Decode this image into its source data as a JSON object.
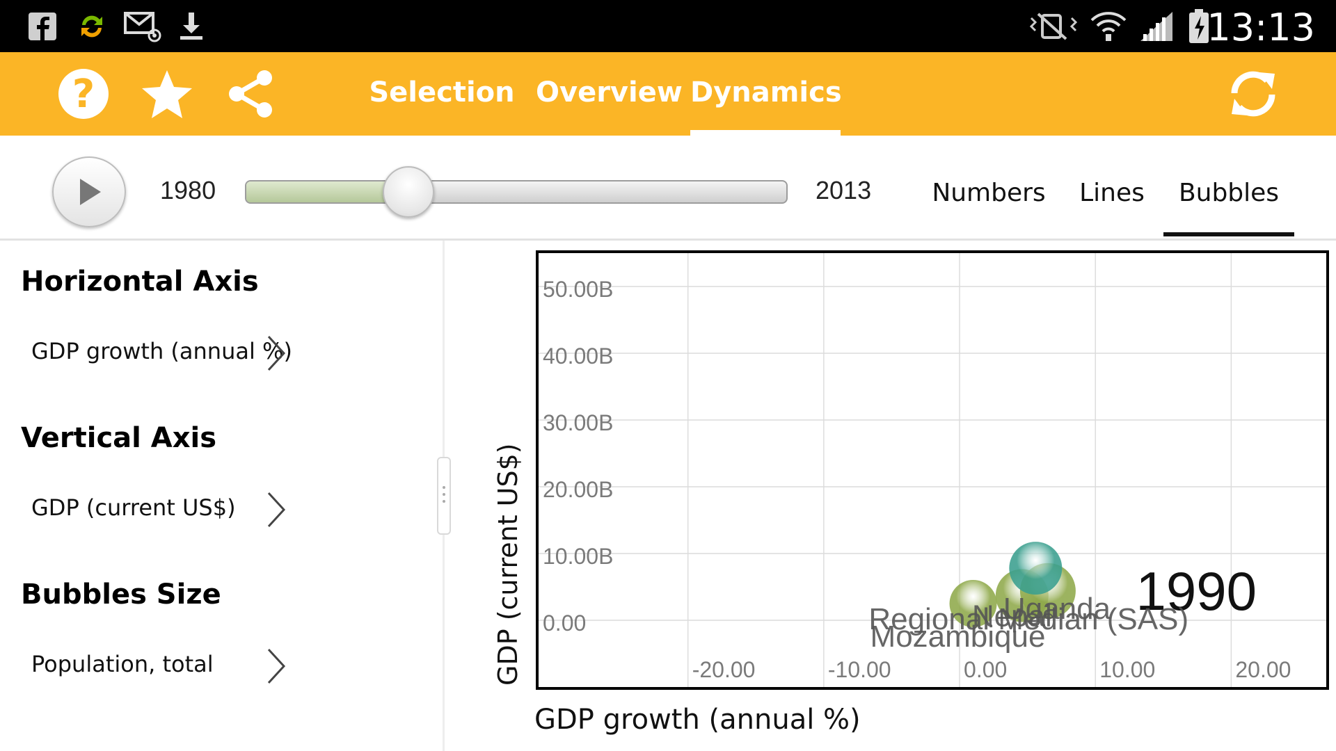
{
  "status_bar": {
    "icons": [
      "facebook-icon",
      "sync-icon",
      "email-icon",
      "download-icon",
      "mute-icon",
      "wifi-icon",
      "signal-icon",
      "battery-icon"
    ],
    "time": "13:13"
  },
  "action_bar": {
    "accent_color": "#fbb526",
    "icons": [
      "help-icon",
      "star-icon",
      "share-icon",
      "refresh-icon"
    ],
    "help_glyph": "?",
    "tabs": [
      {
        "label": "Selection",
        "active": false
      },
      {
        "label": "Overview",
        "active": false
      },
      {
        "label": "Dynamics",
        "active": true
      }
    ]
  },
  "timeline": {
    "start_year": "1980",
    "end_year": "2013",
    "progress_fraction": 0.3,
    "modes": [
      {
        "label": "Numbers",
        "active": false
      },
      {
        "label": "Lines",
        "active": false
      },
      {
        "label": "Bubbles",
        "active": true
      }
    ]
  },
  "settings": {
    "horizontal_axis_title": "Horizontal Axis",
    "horizontal_axis_value": "GDP growth (annual %)",
    "vertical_axis_title": "Vertical Axis",
    "vertical_axis_value": "GDP (current US$)",
    "bubble_size_title": "Bubbles Size",
    "bubble_size_value": "Population, total"
  },
  "chart_data": {
    "type": "scatter",
    "xlabel": "GDP growth (annual %)",
    "ylabel": "GDP (current US$)",
    "year_label": "1990",
    "xlim": [
      -31,
      27
    ],
    "ylim": [
      -10,
      55
    ],
    "x_ticks": [
      -20,
      -10,
      0,
      10,
      20
    ],
    "x_tick_labels": [
      "-20.00",
      "-10.00",
      "0.00",
      "10.00",
      "20.00"
    ],
    "y_ticks": [
      0,
      10,
      20,
      30,
      40,
      50
    ],
    "y_tick_labels": [
      "0.00",
      "10.00B",
      "20.00B",
      "30.00B",
      "40.00B",
      "50.00B"
    ],
    "grid": true,
    "points": [
      {
        "label": "Mozambique",
        "x": 1.0,
        "y": 2.5,
        "size": 34,
        "color": "#8fa94a"
      },
      {
        "label": "Nepal",
        "x": 4.6,
        "y": 3.7,
        "size": 38,
        "color": "#8fa94a"
      },
      {
        "label": "Uganda",
        "x": 6.5,
        "y": 4.4,
        "size": 40,
        "color": "#8fa94a"
      },
      {
        "label": "Regional Median (SAS)",
        "x": 5.6,
        "y": 7.8,
        "size": 38,
        "color": "#3a9f8e"
      }
    ]
  }
}
